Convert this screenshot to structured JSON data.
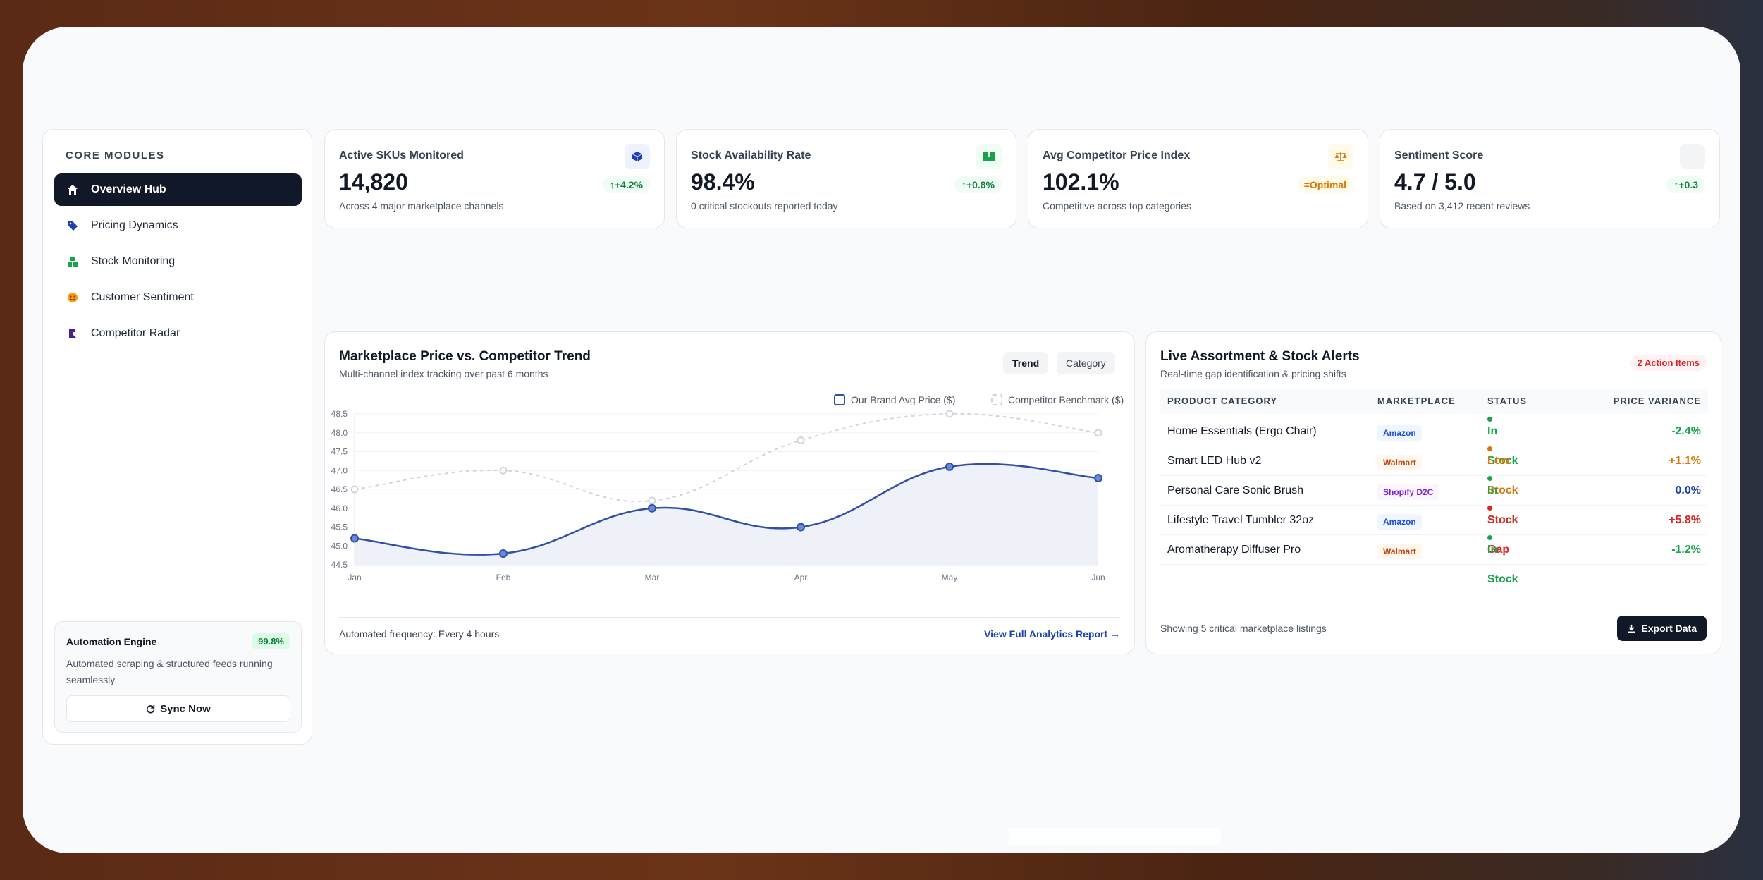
{
  "sidebar": {
    "heading": "CORE MODULES",
    "items": [
      {
        "label": "Overview Hub",
        "icon": "home-icon",
        "color": "#ffffff"
      },
      {
        "label": "Pricing Dynamics",
        "icon": "tag-icon",
        "color": "#1e40af"
      },
      {
        "label": "Stock Monitoring",
        "icon": "boxes-icon",
        "color": "#16a34a"
      },
      {
        "label": "Customer Sentiment",
        "icon": "smile-icon",
        "color": "#f59e0b"
      },
      {
        "label": "Competitor Radar",
        "icon": "radar-icon",
        "color": "#4c1d95"
      }
    ],
    "automation": {
      "title": "Automation Engine",
      "badge": "99.8%",
      "text": "Automated scraping & structured feeds running seamlessly.",
      "sync_label": "Sync Now"
    }
  },
  "kpis": [
    {
      "label": "Active SKUs Monitored",
      "value": "14,820",
      "sub": "Across 4 major marketplace channels",
      "pill": "↑+4.2%",
      "icon": "cube-icon",
      "icon_color": "#1e40af",
      "icon_bg": "#eef2ff"
    },
    {
      "label": "Stock Availability Rate",
      "value": "98.4%",
      "sub": "0 critical stockouts reported today",
      "pill": "↑+0.8%",
      "icon": "boxes-icon",
      "icon_color": "#16a34a",
      "icon_bg": "#f0fdf4"
    },
    {
      "label": "Avg Competitor Price Index",
      "value": "102.1%",
      "sub": "Competitive across top categories",
      "pill": "=Optimal",
      "icon": "scale-icon",
      "icon_color": "#d97706",
      "icon_bg": "#fffbeb"
    },
    {
      "label": "Sentiment Score",
      "value": "4.7 / 5.0",
      "sub": "Based on 3,412 recent reviews",
      "pill": "↑+0.3",
      "icon": "star-icon",
      "icon_color": "#9ca3af",
      "icon_bg": "#f3f4f6"
    }
  ],
  "chart": {
    "title": "Marketplace Price vs. Competitor Trend",
    "subtitle": "Multi-channel index tracking over past 6 months",
    "tab_trend": "Trend",
    "tab_category": "Category",
    "footer": "Automated frequency: Every 4 hours",
    "link": "View Full Analytics Report →"
  },
  "chart_data": {
    "type": "line",
    "categories": [
      "Jan",
      "Feb",
      "Mar",
      "Apr",
      "May",
      "Jun"
    ],
    "series": [
      {
        "name": "Our Brand Avg Price ($)",
        "values": [
          45.2,
          44.8,
          46.0,
          45.5,
          47.1,
          46.8
        ],
        "color": "#2f4fa8"
      },
      {
        "name": "Competitor Benchmark ($)",
        "values": [
          46.5,
          47.0,
          46.2,
          47.8,
          48.5,
          48.0
        ],
        "color": "#d1d5db"
      }
    ],
    "ylim": [
      44.5,
      48.5
    ],
    "yticks": [
      "44.5",
      "45.0",
      "45.5",
      "46.0",
      "46.5",
      "47.0",
      "47.5",
      "48.0",
      "48.5"
    ],
    "grid": true,
    "legend": "top-right"
  },
  "alerts": {
    "title": "Live Assortment & Stock Alerts",
    "subtitle": "Real-time gap identification & pricing shifts",
    "badge": "2 Action Items",
    "columns": [
      "PRODUCT CATEGORY",
      "MARKETPLACE",
      "STATUS",
      "PRICE VARIANCE"
    ],
    "rows": [
      {
        "product": "Home Essentials (Ergo Chair)",
        "marketplace": "Amazon",
        "status": "In Stock",
        "variance": "-2.4%",
        "status_color": "#16a34a",
        "variance_color": "#16a34a"
      },
      {
        "product": "Smart LED Hub v2",
        "marketplace": "Walmart",
        "status": "Low Stock",
        "variance": "+1.1%",
        "status_color": "#d97706",
        "variance_color": "#d97706"
      },
      {
        "product": "Personal Care Sonic Brush",
        "marketplace": "Shopify D2C",
        "status": "In Stock",
        "variance": "0.0%",
        "status_color": "#16a34a",
        "variance_color": "#1e40af"
      },
      {
        "product": "Lifestyle Travel Tumbler 32oz",
        "marketplace": "Amazon",
        "status": "Stock Gap",
        "variance": "+5.8%",
        "status_color": "#dc2626",
        "variance_color": "#dc2626"
      },
      {
        "product": "Aromatherapy Diffuser Pro",
        "marketplace": "Walmart",
        "status": "In Stock",
        "variance": "-1.2%",
        "status_color": "#16a34a",
        "variance_color": "#16a34a"
      }
    ],
    "footer": "Showing 5 critical marketplace listings",
    "export_label": "Export Data"
  }
}
